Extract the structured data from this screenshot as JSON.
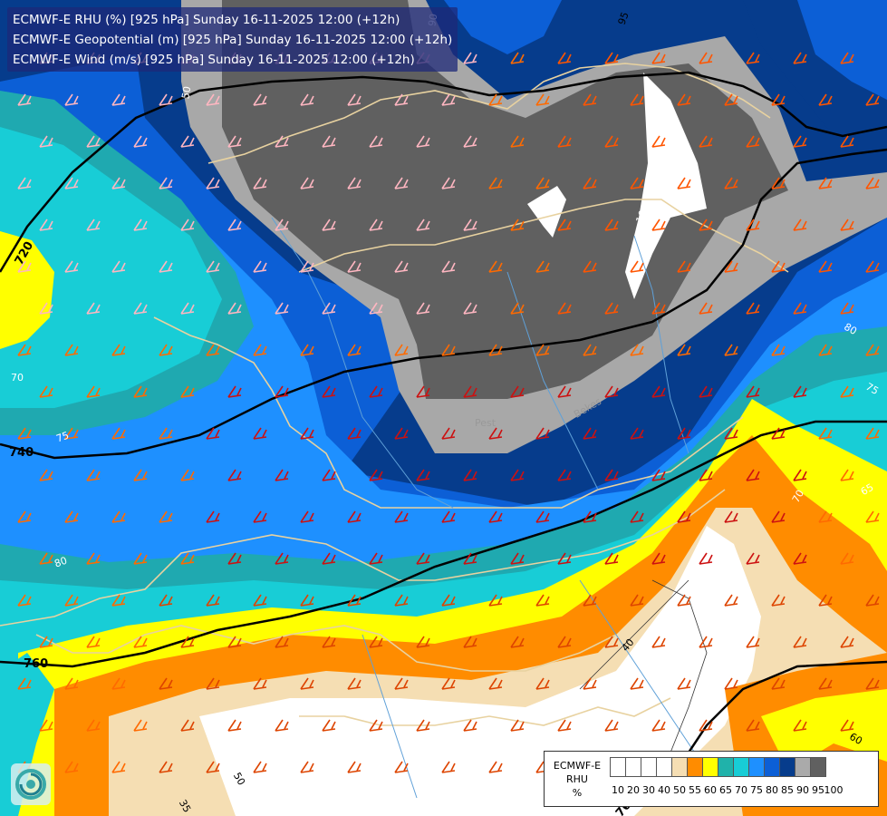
{
  "header": {
    "lines": [
      "ECMWF-E RHU (%) [925 hPa] Sunday 16-11-2025 12:00 (+12h)",
      "ECMWF-E Geopotential (m) [925 hPa] Sunday 16-11-2025 12:00 (+12h)",
      "ECMWF-E Wind (m/s) [925 hPa] Sunday 16-11-2025 12:00 (+12h)"
    ]
  },
  "legend": {
    "title_lines": [
      "ECMWF-E",
      "RHU",
      "%"
    ],
    "ticks": [
      "10",
      "20",
      "30",
      "40",
      "50",
      "55",
      "60",
      "65",
      "70",
      "75",
      "80",
      "85",
      "90",
      "95",
      "100"
    ],
    "colors": [
      "#ffffff",
      "#ffffff",
      "#ffffff",
      "#ffffff",
      "#f5deb3",
      "#ff8c00",
      "#ffff00",
      "#20b2aa",
      "#18cdd6",
      "#1e90ff",
      "#0c5fd6",
      "#063c8c",
      "#aaaaaa",
      "#606060"
    ]
  },
  "map": {
    "geopotential_labels": [
      "720",
      "740",
      "760",
      "760"
    ],
    "rhu_labels": [
      "50",
      "90",
      "95",
      "100",
      "70",
      "75",
      "80",
      "80",
      "75",
      "65",
      "70",
      "60",
      "40",
      "50",
      "35"
    ],
    "city_labels": [
      "Pest",
      "Bekes"
    ],
    "colors": {
      "dark_grey": "#606060",
      "light_grey": "#a8a8a8",
      "navy": "#073c8a",
      "blue": "#0c5fd6",
      "bright_blue": "#1e90ff",
      "cyan": "#18cdd6",
      "teal": "#1fa9b0",
      "yellow": "#ffff00",
      "orange": "#ff8c00",
      "wheat": "#f5deb3",
      "border": "#e8d2a0",
      "river": "#5fa0d8"
    }
  },
  "logo": {
    "icon": "ecmwf-swirl-icon"
  }
}
